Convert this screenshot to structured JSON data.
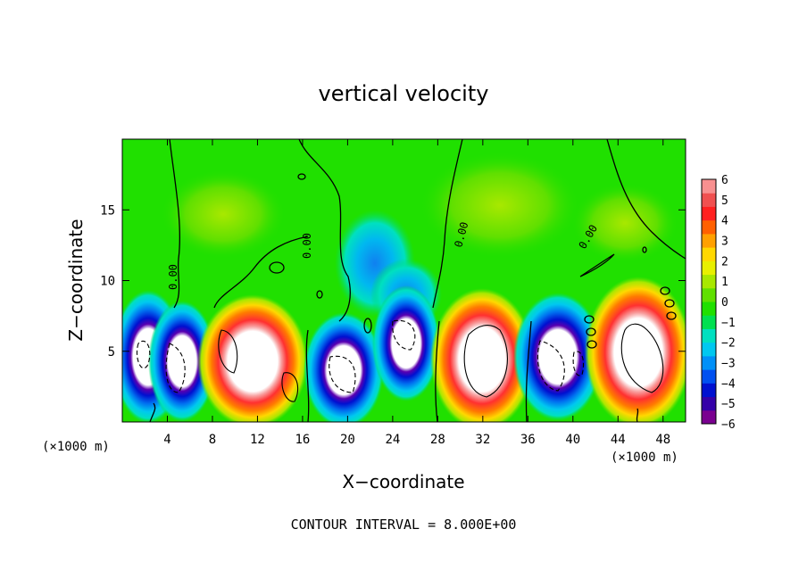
{
  "chart_data": {
    "type": "heatmap",
    "title": "vertical velocity",
    "xlabel": "X−coordinate",
    "ylabel": "Z−coordinate",
    "x_unit_label": "(×1000 m)",
    "y_unit_label": "(×1000 m)",
    "footer": "CONTOUR INTERVAL = 8.000E+00",
    "xlim": [
      0,
      50
    ],
    "ylim": [
      0,
      20
    ],
    "x_ticks": [
      4,
      8,
      12,
      16,
      20,
      24,
      28,
      32,
      36,
      40,
      44,
      48
    ],
    "y_ticks": [
      5,
      10,
      15
    ],
    "colorbar": {
      "range": [
        -6,
        6
      ],
      "ticks": [
        "6",
        "5",
        "4",
        "3",
        "2",
        "1",
        "0",
        "−1",
        "−2",
        "−3",
        "−4",
        "−5",
        "−6"
      ],
      "colors": [
        "#7a0090",
        "#3500a8",
        "#0010d0",
        "#0050f0",
        "#0090f8",
        "#00c8f0",
        "#00e0c0",
        "#00e050",
        "#20e000",
        "#60e000",
        "#a8e800",
        "#e8f000",
        "#ffd800",
        "#ffa000",
        "#ff6000",
        "#ff2020",
        "#f05050",
        "#f89090"
      ]
    },
    "contour_labels": [
      "0.00",
      "0.00",
      "0.00",
      "0.00"
    ],
    "cells": [
      {
        "x": 2.5,
        "z": 4.5,
        "w": -6
      },
      {
        "x": 5.5,
        "z": 4.5,
        "w": -6
      },
      {
        "x": 11.5,
        "z": 4.5,
        "w": 6
      },
      {
        "x": 19.0,
        "z": 4.0,
        "w": -6
      },
      {
        "x": 25.0,
        "z": 6.0,
        "w": -6
      },
      {
        "x": 31.5,
        "z": 4.5,
        "w": 6
      },
      {
        "x": 38.5,
        "z": 4.5,
        "w": -6
      },
      {
        "x": 46.0,
        "z": 5.0,
        "w": 6
      }
    ]
  }
}
